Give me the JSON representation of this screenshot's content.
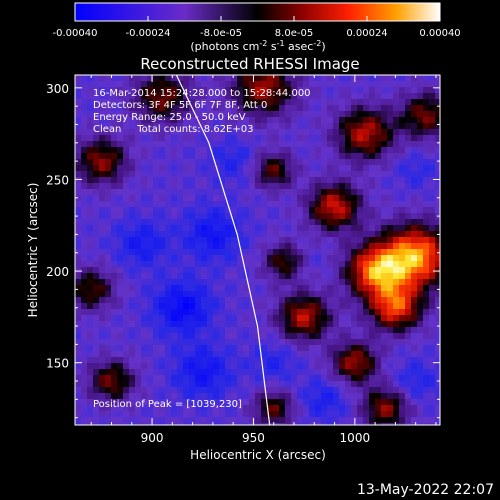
{
  "colorbar": {
    "ticks": [
      "-0.00040",
      "-0.00024",
      "-8.0e-05",
      "8.0e-05",
      "0.00024",
      "0.00040"
    ],
    "tick_values": [
      -0.0004,
      -0.00024,
      -8e-05,
      8e-05,
      0.00024,
      0.0004
    ],
    "range": [
      -0.0004,
      0.0004
    ],
    "units_main": "(photons cm",
    "units_sup1": "-2",
    "units_mid": " s",
    "units_sup2": "-1",
    "units_end": " asec",
    "units_sup3": "-2",
    "units_close": ")"
  },
  "chart_data": {
    "type": "heatmap",
    "title": "Reconstructed RHESSI Image",
    "xlabel": "Heliocentric X (arcsec)",
    "ylabel": "Heliocentric Y (arcsec)",
    "xlim": [
      862,
      1042
    ],
    "ylim": [
      116,
      307
    ],
    "xticks": [
      900,
      950,
      1000
    ],
    "yticks": [
      150,
      200,
      250,
      300
    ],
    "annotations": [
      "16-Mar-2014 15:24:28.000 to 15:28:44.000",
      "Detectors: 3F 4F 5F 6F 7F 8F, Att 0",
      "Energy Range: 25.0 - 50.0 keV",
      "Clean     Total counts: 8.62E+03"
    ],
    "peak_label": "Position of Peak = [1039,230]",
    "peak": [
      1039,
      230
    ],
    "limb_curve": [
      [
        912,
        307
      ],
      [
        928,
        270
      ],
      [
        942,
        220
      ],
      [
        952,
        170
      ],
      [
        958,
        116
      ]
    ],
    "blobs": [
      {
        "x": 1030,
        "y": 208,
        "amp": 0.0004,
        "r": 12
      },
      {
        "x": 1010,
        "y": 200,
        "amp": 0.00034,
        "r": 10
      },
      {
        "x": 1020,
        "y": 180,
        "amp": 0.0003,
        "r": 9
      },
      {
        "x": 975,
        "y": 175,
        "amp": 0.00024,
        "r": 9
      },
      {
        "x": 1000,
        "y": 150,
        "amp": 0.00022,
        "r": 8
      },
      {
        "x": 990,
        "y": 235,
        "amp": 0.00026,
        "r": 9
      },
      {
        "x": 1005,
        "y": 275,
        "amp": 0.00024,
        "r": 10
      },
      {
        "x": 1035,
        "y": 285,
        "amp": 0.00018,
        "r": 9
      },
      {
        "x": 955,
        "y": 300,
        "amp": 0.00022,
        "r": 11
      },
      {
        "x": 905,
        "y": 295,
        "amp": 0.00018,
        "r": 10
      },
      {
        "x": 875,
        "y": 260,
        "amp": 0.0002,
        "r": 9
      },
      {
        "x": 870,
        "y": 190,
        "amp": 0.00016,
        "r": 8
      },
      {
        "x": 880,
        "y": 140,
        "amp": 0.00018,
        "r": 8
      },
      {
        "x": 960,
        "y": 255,
        "amp": 0.00016,
        "r": 7
      },
      {
        "x": 965,
        "y": 205,
        "amp": 0.00015,
        "r": 7
      },
      {
        "x": 1015,
        "y": 125,
        "amp": 0.0002,
        "r": 8
      },
      {
        "x": 960,
        "y": 125,
        "amp": 0.00016,
        "r": 7
      },
      {
        "x": 915,
        "y": 180,
        "amp": -0.00026,
        "r": 10
      },
      {
        "x": 930,
        "y": 220,
        "amp": -0.00022,
        "r": 10
      },
      {
        "x": 895,
        "y": 215,
        "amp": -0.0002,
        "r": 9
      },
      {
        "x": 925,
        "y": 145,
        "amp": -0.00022,
        "r": 10
      },
      {
        "x": 960,
        "y": 150,
        "amp": -0.00016,
        "r": 8
      },
      {
        "x": 985,
        "y": 130,
        "amp": -0.00018,
        "r": 8
      },
      {
        "x": 1030,
        "y": 140,
        "amp": -0.00016,
        "r": 8
      },
      {
        "x": 940,
        "y": 260,
        "amp": -0.00016,
        "r": 8
      },
      {
        "x": 1030,
        "y": 255,
        "amp": -0.00014,
        "r": 7
      },
      {
        "x": 980,
        "y": 205,
        "amp": -0.0001,
        "r": 6
      }
    ]
  },
  "footer": {
    "timestamp": "13-May-2022 22:07"
  }
}
